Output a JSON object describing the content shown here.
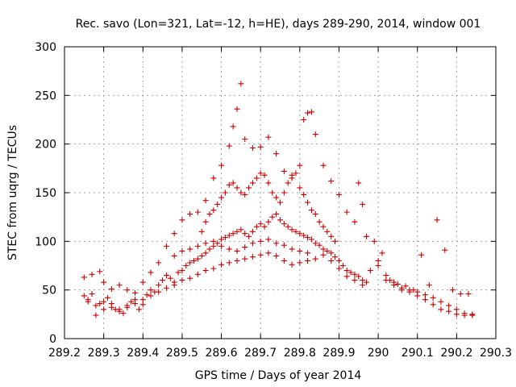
{
  "chart_data": {
    "type": "scatter",
    "title": "Rec. savo (Lon=321, Lat=-12, h=HE), days 289-290, 2014, window 001",
    "xlabel": "GPS time / Days of year 2014",
    "ylabel": "STEC from uqrg / TECUs",
    "xlim": [
      289.2,
      290.3
    ],
    "ylim": [
      0,
      300
    ],
    "xticks": [
      "289.2",
      "289.3",
      "289.4",
      "289.5",
      "289.6",
      "289.7",
      "289.8",
      "289.9",
      "290",
      "290.1",
      "290.2",
      "290.3"
    ],
    "yticks": [
      "0",
      "50",
      "100",
      "150",
      "200",
      "250",
      "300"
    ],
    "grid": true,
    "marker": "+",
    "color": "#cc0000",
    "points": [
      [
        289.25,
        63
      ],
      [
        289.27,
        66
      ],
      [
        289.29,
        69
      ],
      [
        289.3,
        58
      ],
      [
        289.32,
        51
      ],
      [
        289.34,
        55
      ],
      [
        289.36,
        50
      ],
      [
        289.38,
        47
      ],
      [
        289.4,
        58
      ],
      [
        289.42,
        68
      ],
      [
        289.44,
        78
      ],
      [
        289.46,
        95
      ],
      [
        289.48,
        108
      ],
      [
        289.5,
        122
      ],
      [
        289.52,
        128
      ],
      [
        289.54,
        130
      ],
      [
        289.56,
        142
      ],
      [
        289.58,
        165
      ],
      [
        289.6,
        178
      ],
      [
        289.62,
        198
      ],
      [
        289.63,
        218
      ],
      [
        289.64,
        236
      ],
      [
        289.65,
        262
      ],
      [
        289.66,
        205
      ],
      [
        289.68,
        196
      ],
      [
        289.7,
        197
      ],
      [
        289.72,
        207
      ],
      [
        289.74,
        190
      ],
      [
        289.76,
        172
      ],
      [
        289.78,
        168
      ],
      [
        289.8,
        178
      ],
      [
        289.81,
        225
      ],
      [
        289.82,
        232
      ],
      [
        289.83,
        233
      ],
      [
        289.84,
        210
      ],
      [
        289.86,
        178
      ],
      [
        289.88,
        162
      ],
      [
        289.9,
        148
      ],
      [
        289.92,
        130
      ],
      [
        289.94,
        120
      ],
      [
        289.95,
        160
      ],
      [
        289.96,
        138
      ],
      [
        289.97,
        105
      ],
      [
        289.25,
        44
      ],
      [
        289.26,
        40
      ],
      [
        289.27,
        46
      ],
      [
        289.28,
        24
      ],
      [
        289.29,
        36
      ],
      [
        289.3,
        38
      ],
      [
        289.31,
        42
      ],
      [
        289.32,
        36
      ],
      [
        289.33,
        30
      ],
      [
        289.34,
        28
      ],
      [
        289.35,
        26
      ],
      [
        289.36,
        32
      ],
      [
        289.37,
        38
      ],
      [
        289.38,
        40
      ],
      [
        289.39,
        30
      ],
      [
        289.4,
        35
      ],
      [
        289.41,
        45
      ],
      [
        289.42,
        50
      ],
      [
        289.43,
        48
      ],
      [
        289.44,
        55
      ],
      [
        289.45,
        60
      ],
      [
        289.46,
        65
      ],
      [
        289.47,
        62
      ],
      [
        289.48,
        58
      ],
      [
        289.49,
        68
      ],
      [
        289.5,
        70
      ],
      [
        289.51,
        75
      ],
      [
        289.52,
        78
      ],
      [
        289.53,
        80
      ],
      [
        289.54,
        82
      ],
      [
        289.55,
        85
      ],
      [
        289.56,
        88
      ],
      [
        289.57,
        92
      ],
      [
        289.58,
        95
      ],
      [
        289.59,
        98
      ],
      [
        289.6,
        102
      ],
      [
        289.61,
        104
      ],
      [
        289.62,
        106
      ],
      [
        289.63,
        108
      ],
      [
        289.64,
        110
      ],
      [
        289.65,
        112
      ],
      [
        289.66,
        108
      ],
      [
        289.67,
        105
      ],
      [
        289.68,
        110
      ],
      [
        289.69,
        115
      ],
      [
        289.7,
        118
      ],
      [
        289.71,
        115
      ],
      [
        289.72,
        120
      ],
      [
        289.73,
        125
      ],
      [
        289.74,
        128
      ],
      [
        289.75,
        122
      ],
      [
        289.76,
        118
      ],
      [
        289.77,
        115
      ],
      [
        289.78,
        112
      ],
      [
        289.79,
        110
      ],
      [
        289.8,
        108
      ],
      [
        289.81,
        106
      ],
      [
        289.82,
        104
      ],
      [
        289.83,
        102
      ],
      [
        289.84,
        98
      ],
      [
        289.85,
        96
      ],
      [
        289.86,
        92
      ],
      [
        289.87,
        90
      ],
      [
        289.88,
        88
      ],
      [
        289.89,
        84
      ],
      [
        289.9,
        80
      ],
      [
        289.91,
        75
      ],
      [
        289.92,
        70
      ],
      [
        289.93,
        68
      ],
      [
        289.94,
        66
      ],
      [
        289.95,
        64
      ],
      [
        289.96,
        60
      ],
      [
        289.97,
        58
      ],
      [
        289.26,
        38
      ],
      [
        289.28,
        34
      ],
      [
        289.3,
        30
      ],
      [
        289.32,
        32
      ],
      [
        289.34,
        30
      ],
      [
        289.36,
        34
      ],
      [
        289.38,
        36
      ],
      [
        289.4,
        40
      ],
      [
        289.42,
        44
      ],
      [
        289.44,
        48
      ],
      [
        289.46,
        52
      ],
      [
        289.48,
        55
      ],
      [
        289.5,
        60
      ],
      [
        289.52,
        62
      ],
      [
        289.54,
        66
      ],
      [
        289.56,
        70
      ],
      [
        289.58,
        72
      ],
      [
        289.6,
        76
      ],
      [
        289.62,
        78
      ],
      [
        289.64,
        80
      ],
      [
        289.66,
        82
      ],
      [
        289.68,
        84
      ],
      [
        289.7,
        86
      ],
      [
        289.72,
        88
      ],
      [
        289.74,
        85
      ],
      [
        289.76,
        80
      ],
      [
        289.78,
        76
      ],
      [
        289.8,
        78
      ],
      [
        289.82,
        80
      ],
      [
        289.84,
        82
      ],
      [
        289.86,
        86
      ],
      [
        289.88,
        80
      ],
      [
        289.9,
        72
      ],
      [
        289.92,
        64
      ],
      [
        289.94,
        60
      ],
      [
        289.96,
        55
      ],
      [
        289.55,
        110
      ],
      [
        289.56,
        120
      ],
      [
        289.57,
        128
      ],
      [
        289.58,
        132
      ],
      [
        289.59,
        138
      ],
      [
        289.6,
        145
      ],
      [
        289.61,
        150
      ],
      [
        289.62,
        158
      ],
      [
        289.63,
        160
      ],
      [
        289.64,
        155
      ],
      [
        289.65,
        150
      ],
      [
        289.66,
        148
      ],
      [
        289.67,
        155
      ],
      [
        289.68,
        160
      ],
      [
        289.69,
        165
      ],
      [
        289.7,
        170
      ],
      [
        289.71,
        168
      ],
      [
        289.72,
        160
      ],
      [
        289.73,
        150
      ],
      [
        289.74,
        145
      ],
      [
        289.75,
        140
      ],
      [
        289.76,
        150
      ],
      [
        289.77,
        160
      ],
      [
        289.78,
        165
      ],
      [
        289.79,
        170
      ],
      [
        289.8,
        155
      ],
      [
        289.81,
        148
      ],
      [
        289.82,
        140
      ],
      [
        289.83,
        132
      ],
      [
        289.84,
        128
      ],
      [
        289.85,
        120
      ],
      [
        289.86,
        115
      ],
      [
        289.87,
        110
      ],
      [
        289.88,
        105
      ],
      [
        289.89,
        100
      ],
      [
        289.48,
        85
      ],
      [
        289.5,
        90
      ],
      [
        289.52,
        92
      ],
      [
        289.54,
        95
      ],
      [
        289.56,
        98
      ],
      [
        289.58,
        100
      ],
      [
        289.6,
        95
      ],
      [
        289.62,
        92
      ],
      [
        289.64,
        90
      ],
      [
        289.66,
        94
      ],
      [
        289.68,
        98
      ],
      [
        289.7,
        100
      ],
      [
        289.72,
        102
      ],
      [
        289.74,
        98
      ],
      [
        289.76,
        96
      ],
      [
        289.78,
        92
      ],
      [
        289.8,
        90
      ],
      [
        289.82,
        88
      ],
      [
        289.98,
        70
      ],
      [
        290.0,
        75
      ],
      [
        290.02,
        65
      ],
      [
        290.04,
        55
      ],
      [
        290.06,
        52
      ],
      [
        290.08,
        50
      ],
      [
        290.1,
        48
      ],
      [
        290.12,
        45
      ],
      [
        290.14,
        42
      ],
      [
        290.16,
        38
      ],
      [
        290.18,
        34
      ],
      [
        290.2,
        30
      ],
      [
        290.22,
        26
      ],
      [
        290.24,
        24
      ],
      [
        289.99,
        100
      ],
      [
        290.01,
        88
      ],
      [
        290.03,
        60
      ],
      [
        290.05,
        56
      ],
      [
        290.07,
        54
      ],
      [
        290.09,
        50
      ],
      [
        290.11,
        86
      ],
      [
        290.13,
        55
      ],
      [
        290.15,
        122
      ],
      [
        290.17,
        91
      ],
      [
        290.19,
        50
      ],
      [
        290.21,
        46
      ],
      [
        290.23,
        46
      ],
      [
        290.0,
        80
      ],
      [
        290.02,
        60
      ],
      [
        290.04,
        58
      ],
      [
        290.06,
        50
      ],
      [
        290.08,
        48
      ],
      [
        290.1,
        44
      ],
      [
        290.12,
        40
      ],
      [
        290.14,
        35
      ],
      [
        290.16,
        30
      ],
      [
        290.18,
        28
      ],
      [
        290.2,
        25
      ],
      [
        290.22,
        24
      ],
      [
        290.24,
        25
      ]
    ]
  }
}
